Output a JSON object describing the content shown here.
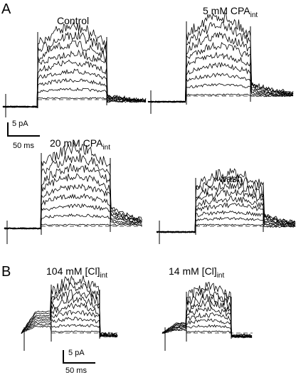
{
  "panel_a": {
    "label": "A",
    "traces": [
      {
        "title": "Control"
      },
      {
        "title": "5 mM CPA",
        "subscript": "int"
      },
      {
        "title": "20 mM CPA",
        "subscript": "int"
      },
      {
        "title": "wash"
      }
    ],
    "scale_bar": {
      "current": "5 pA",
      "time": "50 ms"
    }
  },
  "panel_b": {
    "label": "B",
    "traces": [
      {
        "title": "104 mM [Cl]",
        "subscript": "int"
      },
      {
        "title": "14 mM [Cl]",
        "subscript": "int"
      }
    ],
    "scale_bar": {
      "current": "5 pA",
      "time": "50 ms"
    }
  }
}
